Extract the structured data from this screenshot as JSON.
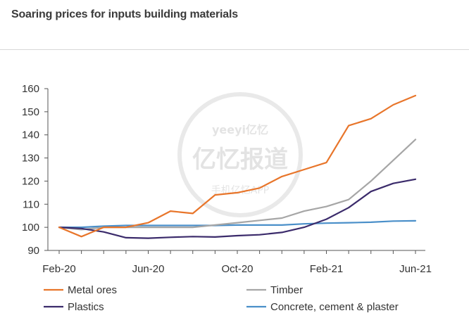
{
  "chart_data": {
    "type": "line",
    "title": "Soaring prices for inputs building materials",
    "x": [
      "Feb-20",
      "Mar-20",
      "Apr-20",
      "May-20",
      "Jun-20",
      "Jul-20",
      "Aug-20",
      "Sep-20",
      "Oct-20",
      "Nov-20",
      "Dec-20",
      "Jan-21",
      "Feb-21",
      "Mar-21",
      "Apr-21",
      "May-21",
      "Jun-21"
    ],
    "xticks": [
      "Feb-20",
      "Jun-20",
      "Oct-20",
      "Feb-21",
      "Jun-21"
    ],
    "ylim": [
      90,
      160
    ],
    "yticks": [
      90,
      100,
      110,
      120,
      130,
      140,
      150,
      160
    ],
    "grid": false,
    "legend_position": "bottom",
    "series": [
      {
        "name": "Metal ores",
        "color": "#e8752a",
        "values": [
          100,
          96,
          100,
          100,
          102,
          107,
          106,
          114,
          115,
          117,
          122,
          125,
          128,
          144,
          147,
          153,
          157
        ]
      },
      {
        "name": "Timber",
        "color": "#a6a6a6",
        "values": [
          100,
          99,
          100,
          100,
          100,
          100,
          100,
          101,
          102,
          103,
          104,
          107,
          109,
          112,
          120,
          129,
          138
        ]
      },
      {
        "name": "Plastics",
        "color": "#3b2b6b",
        "values": [
          100,
          99.5,
          98,
          95.5,
          95.3,
          95.7,
          96,
          95.8,
          96.4,
          96.8,
          97.8,
          100,
          103.5,
          108.5,
          115.5,
          119,
          120.8
        ]
      },
      {
        "name": "Concrete, cement & plaster",
        "color": "#4a8fc9",
        "values": [
          100,
          100,
          100.5,
          100.8,
          100.8,
          100.8,
          100.8,
          100.8,
          101,
          101,
          101,
          101.5,
          101.8,
          102,
          102.2,
          102.7,
          102.8
        ]
      }
    ]
  },
  "watermark": {
    "latin": "yeeyi亿忆",
    "chinese": "亿忆报道",
    "app": "手机亿忆APP"
  }
}
